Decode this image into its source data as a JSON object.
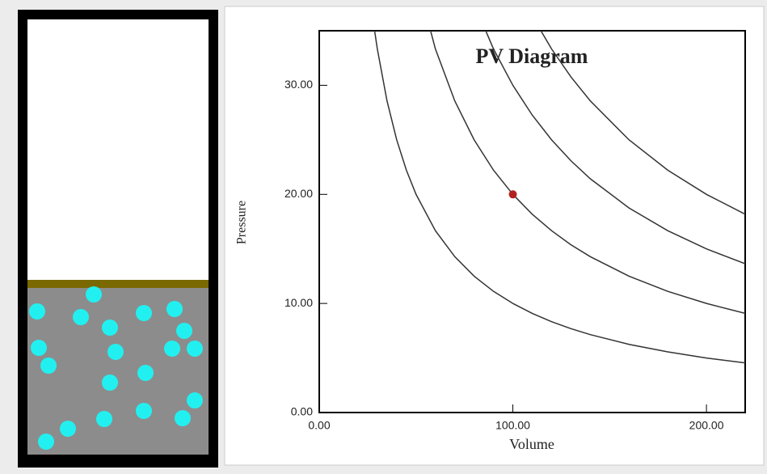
{
  "chart_data": {
    "type": "line",
    "title": "PV Diagram",
    "x_label": "Volume",
    "y_label": "Pressure",
    "x": [
      25,
      28,
      30,
      35,
      40,
      45,
      50,
      60,
      70,
      80,
      90,
      100,
      110,
      120,
      130,
      140,
      160,
      180,
      200,
      220
    ],
    "series": [
      {
        "color": "#333333",
        "values": [
          null,
          35.71,
          33.33,
          28.57,
          25,
          22.22,
          20,
          16.67,
          14.29,
          12.5,
          11.11,
          10,
          9.09,
          8.33,
          7.69,
          7.14,
          6.25,
          5.56,
          5,
          4.55
        ]
      },
      {
        "color": "#333333",
        "values": [
          null,
          null,
          null,
          null,
          null,
          null,
          40,
          33.33,
          28.57,
          25,
          22.22,
          20,
          18.18,
          16.67,
          15.38,
          14.29,
          12.5,
          11.11,
          10,
          9.09
        ]
      },
      {
        "color": "#333333",
        "values": [
          null,
          null,
          null,
          null,
          null,
          null,
          null,
          null,
          null,
          37.5,
          33.33,
          30,
          27.27,
          25,
          23.08,
          21.43,
          18.75,
          16.67,
          15,
          13.64
        ]
      },
      {
        "color": "#333333",
        "values": [
          null,
          null,
          null,
          null,
          null,
          null,
          null,
          null,
          null,
          null,
          null,
          null,
          36.36,
          33.33,
          30.77,
          28.57,
          25,
          22.22,
          20,
          18.18
        ]
      }
    ],
    "point": {
      "x": 100,
      "y": 20,
      "color": "#b22222"
    },
    "xlim": [
      0,
      220
    ],
    "ylim": [
      0,
      35
    ],
    "xticks": [
      {
        "value": 0,
        "label": "0.00"
      },
      {
        "value": 100,
        "label": "100.00"
      },
      {
        "value": 200,
        "label": "200.00"
      }
    ],
    "yticks": [
      {
        "value": 0,
        "label": "0.00"
      },
      {
        "value": 10,
        "label": "10.00"
      },
      {
        "value": 20,
        "label": "20.00"
      },
      {
        "value": 30,
        "label": "30.00"
      }
    ]
  }
}
